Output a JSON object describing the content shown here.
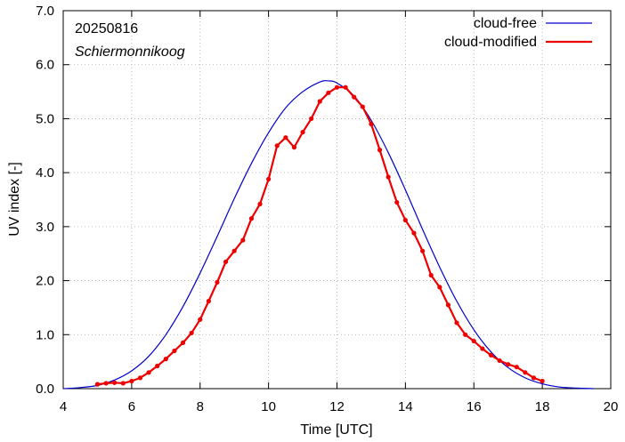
{
  "chart_data": {
    "type": "line",
    "xlabel": "Time  [UTC]",
    "ylabel": "UV index  [-]",
    "xlim": [
      4,
      20
    ],
    "ylim": [
      0,
      7
    ],
    "x_ticks": [
      4,
      6,
      8,
      10,
      12,
      14,
      16,
      18,
      20
    ],
    "y_ticks": [
      0,
      1,
      2,
      3,
      4,
      5,
      6,
      7
    ],
    "x_tick_labels": [
      "4",
      "6",
      "8",
      "10",
      "12",
      "14",
      "16",
      "18",
      "20"
    ],
    "y_tick_labels": [
      "0.0",
      "1.0",
      "2.0",
      "3.0",
      "4.0",
      "5.0",
      "6.0",
      "7.0"
    ],
    "grid": true,
    "legend_position": "top-right",
    "annotations": {
      "date": "20250816",
      "station": "Schiermonnikoog"
    },
    "series": [
      {
        "name": "cloud-free",
        "color": "#0000cc",
        "markers": false,
        "x": [
          4.0,
          4.5,
          5.0,
          5.5,
          6.0,
          6.5,
          7.0,
          7.5,
          8.0,
          8.5,
          9.0,
          9.5,
          10.0,
          10.5,
          11.0,
          11.5,
          11.75,
          12.0,
          12.5,
          13.0,
          13.5,
          14.0,
          14.5,
          15.0,
          15.5,
          16.0,
          16.5,
          17.0,
          17.5,
          18.0,
          18.5,
          19.0,
          19.5
        ],
        "y": [
          0.0,
          0.02,
          0.06,
          0.16,
          0.33,
          0.6,
          1.0,
          1.52,
          2.14,
          2.82,
          3.52,
          4.17,
          4.74,
          5.2,
          5.5,
          5.68,
          5.7,
          5.66,
          5.42,
          4.97,
          4.37,
          3.68,
          2.95,
          2.25,
          1.62,
          1.09,
          0.68,
          0.39,
          0.2,
          0.09,
          0.03,
          0.01,
          0.0
        ]
      },
      {
        "name": "cloud-modified",
        "color": "#ee0000",
        "markers": true,
        "x": [
          5.0,
          5.25,
          5.5,
          5.75,
          6.0,
          6.25,
          6.5,
          6.75,
          7.0,
          7.25,
          7.5,
          7.75,
          8.0,
          8.25,
          8.5,
          8.75,
          9.0,
          9.25,
          9.5,
          9.75,
          10.0,
          10.25,
          10.5,
          10.75,
          11.0,
          11.25,
          11.5,
          11.75,
          12.0,
          12.25,
          12.5,
          12.75,
          13.0,
          13.25,
          13.5,
          13.75,
          14.0,
          14.25,
          14.5,
          14.75,
          15.0,
          15.25,
          15.5,
          15.75,
          16.0,
          16.25,
          16.5,
          16.75,
          17.0,
          17.25,
          17.5,
          17.75,
          18.0
        ],
        "y": [
          0.08,
          0.1,
          0.11,
          0.1,
          0.14,
          0.2,
          0.3,
          0.42,
          0.55,
          0.7,
          0.85,
          1.03,
          1.28,
          1.62,
          1.97,
          2.35,
          2.55,
          2.75,
          3.15,
          3.42,
          3.88,
          4.5,
          4.65,
          4.47,
          4.75,
          5.0,
          5.32,
          5.48,
          5.58,
          5.58,
          5.4,
          5.22,
          4.9,
          4.42,
          3.92,
          3.45,
          3.12,
          2.88,
          2.55,
          2.1,
          1.88,
          1.55,
          1.22,
          1.0,
          0.88,
          0.74,
          0.62,
          0.52,
          0.45,
          0.4,
          0.3,
          0.2,
          0.14
        ]
      }
    ]
  }
}
